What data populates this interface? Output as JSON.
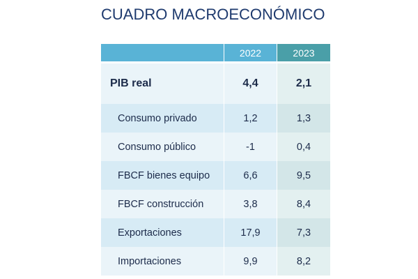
{
  "title": "CUADRO MACROECONÓMICO",
  "table": {
    "headers": [
      "",
      "2022",
      "2023"
    ],
    "main_row": {
      "label": "PIB real",
      "v2022": "4,4",
      "v2023": "2,1"
    },
    "rows": [
      {
        "label": "Consumo privado",
        "v2022": "1,2",
        "v2023": "1,3"
      },
      {
        "label": "Consumo público",
        "v2022": "-1",
        "v2023": "0,4"
      },
      {
        "label": "FBCF bienes equipo",
        "v2022": "6,6",
        "v2023": "9,5"
      },
      {
        "label": "FBCF construcción",
        "v2022": "3,8",
        "v2023": "8,4"
      },
      {
        "label": "Exportaciones",
        "v2022": "17,9",
        "v2023": "7,3"
      },
      {
        "label": "Importaciones",
        "v2022": "9,9",
        "v2023": "8,2"
      }
    ]
  },
  "colors": {
    "title": "#1e3a6e",
    "header_2022": "#59b3d6",
    "header_2023": "#4a9fa8",
    "row_shade": "#d7ebf5",
    "row_light": "#eaf4f9"
  }
}
